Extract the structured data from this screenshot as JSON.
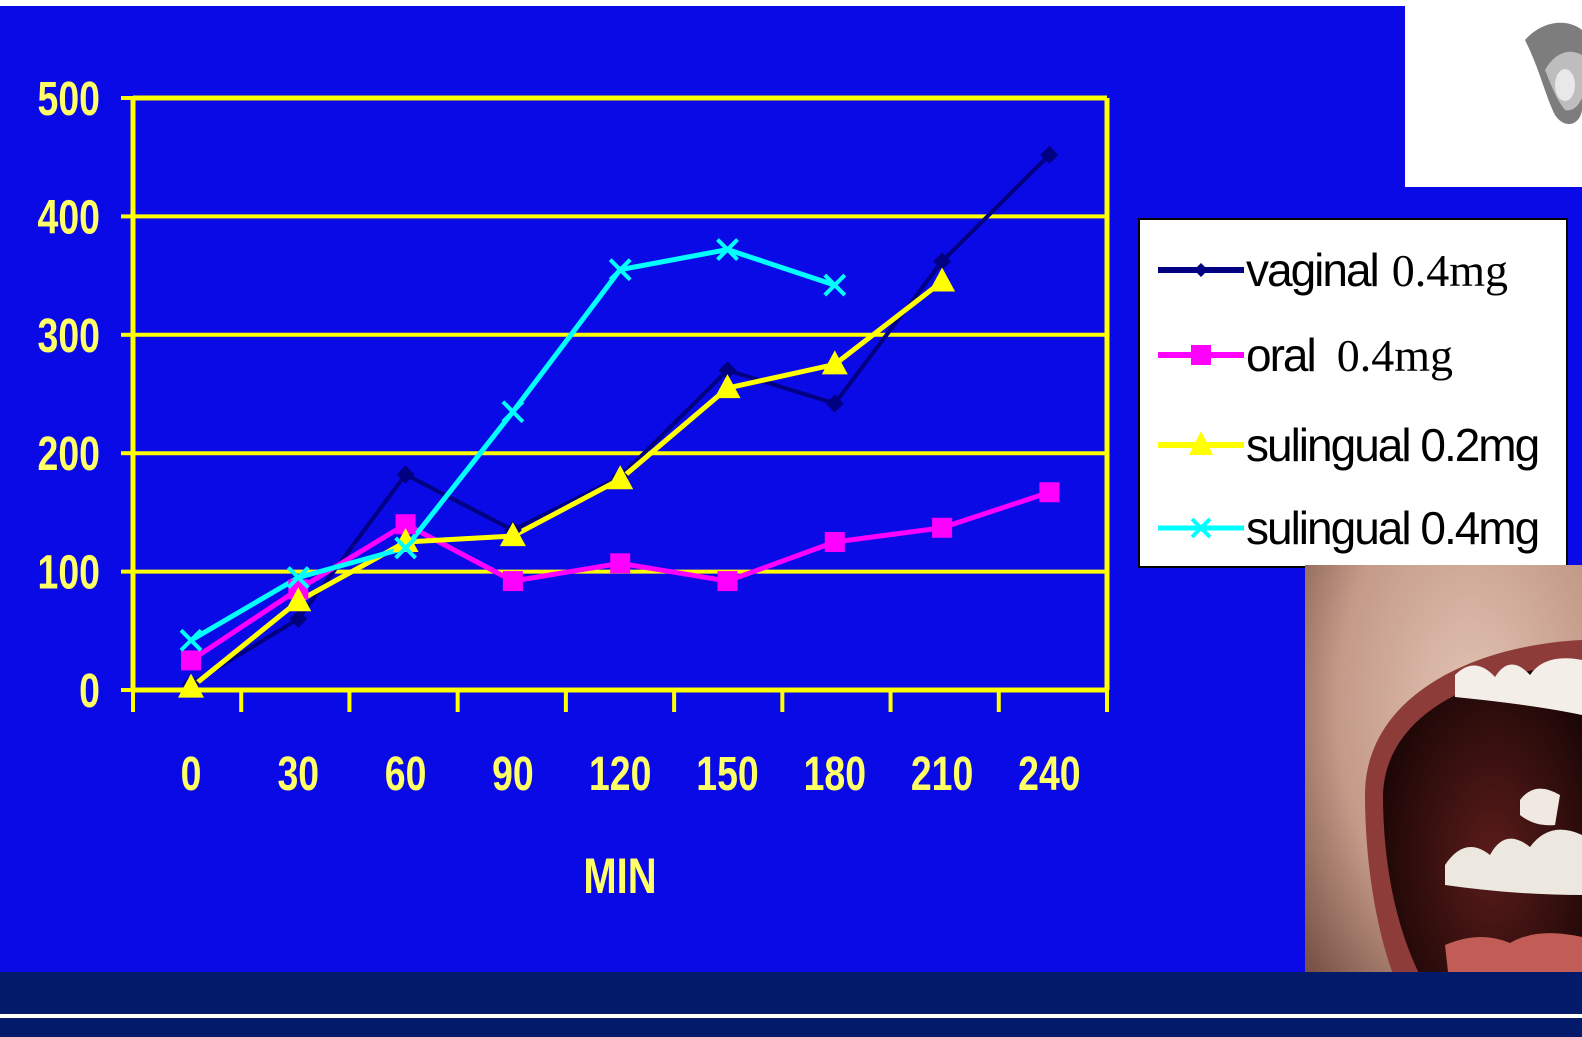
{
  "chart_data": {
    "type": "line",
    "x": [
      0,
      30,
      60,
      90,
      120,
      150,
      180,
      210,
      240
    ],
    "xlabel": "MIN",
    "ylabel": "",
    "ylim": [
      0,
      500
    ],
    "yticks": [
      0,
      100,
      200,
      300,
      400,
      500
    ],
    "grid": true,
    "legend_position": "right",
    "series": [
      {
        "name": "vaginal",
        "dose": "0.4mg",
        "color": "#000080",
        "marker": "diamond",
        "values": [
          5,
          60,
          182,
          135,
          180,
          270,
          242,
          362,
          452
        ]
      },
      {
        "name": "oral",
        "dose": "0.4mg",
        "color": "#ff00ff",
        "marker": "square",
        "values": [
          25,
          85,
          140,
          92,
          107,
          92,
          125,
          137,
          167
        ]
      },
      {
        "name": "sulingual 0.2mg",
        "dose": "",
        "color": "#ffff00",
        "marker": "triangle",
        "values": [
          2,
          75,
          125,
          130,
          178,
          255,
          275,
          345,
          null
        ]
      },
      {
        "name": "sulingual 0.4mg",
        "dose": "",
        "color": "#00ffff",
        "marker": "x",
        "values": [
          42,
          95,
          120,
          235,
          355,
          372,
          342,
          null,
          null
        ]
      }
    ]
  },
  "colors": {
    "background": "#0a0ae6",
    "axis": "#ffff00",
    "tick_text": "#ffff66"
  },
  "images": {
    "top_right": "pill-photo",
    "bottom_right": "open-mouth-photo"
  }
}
